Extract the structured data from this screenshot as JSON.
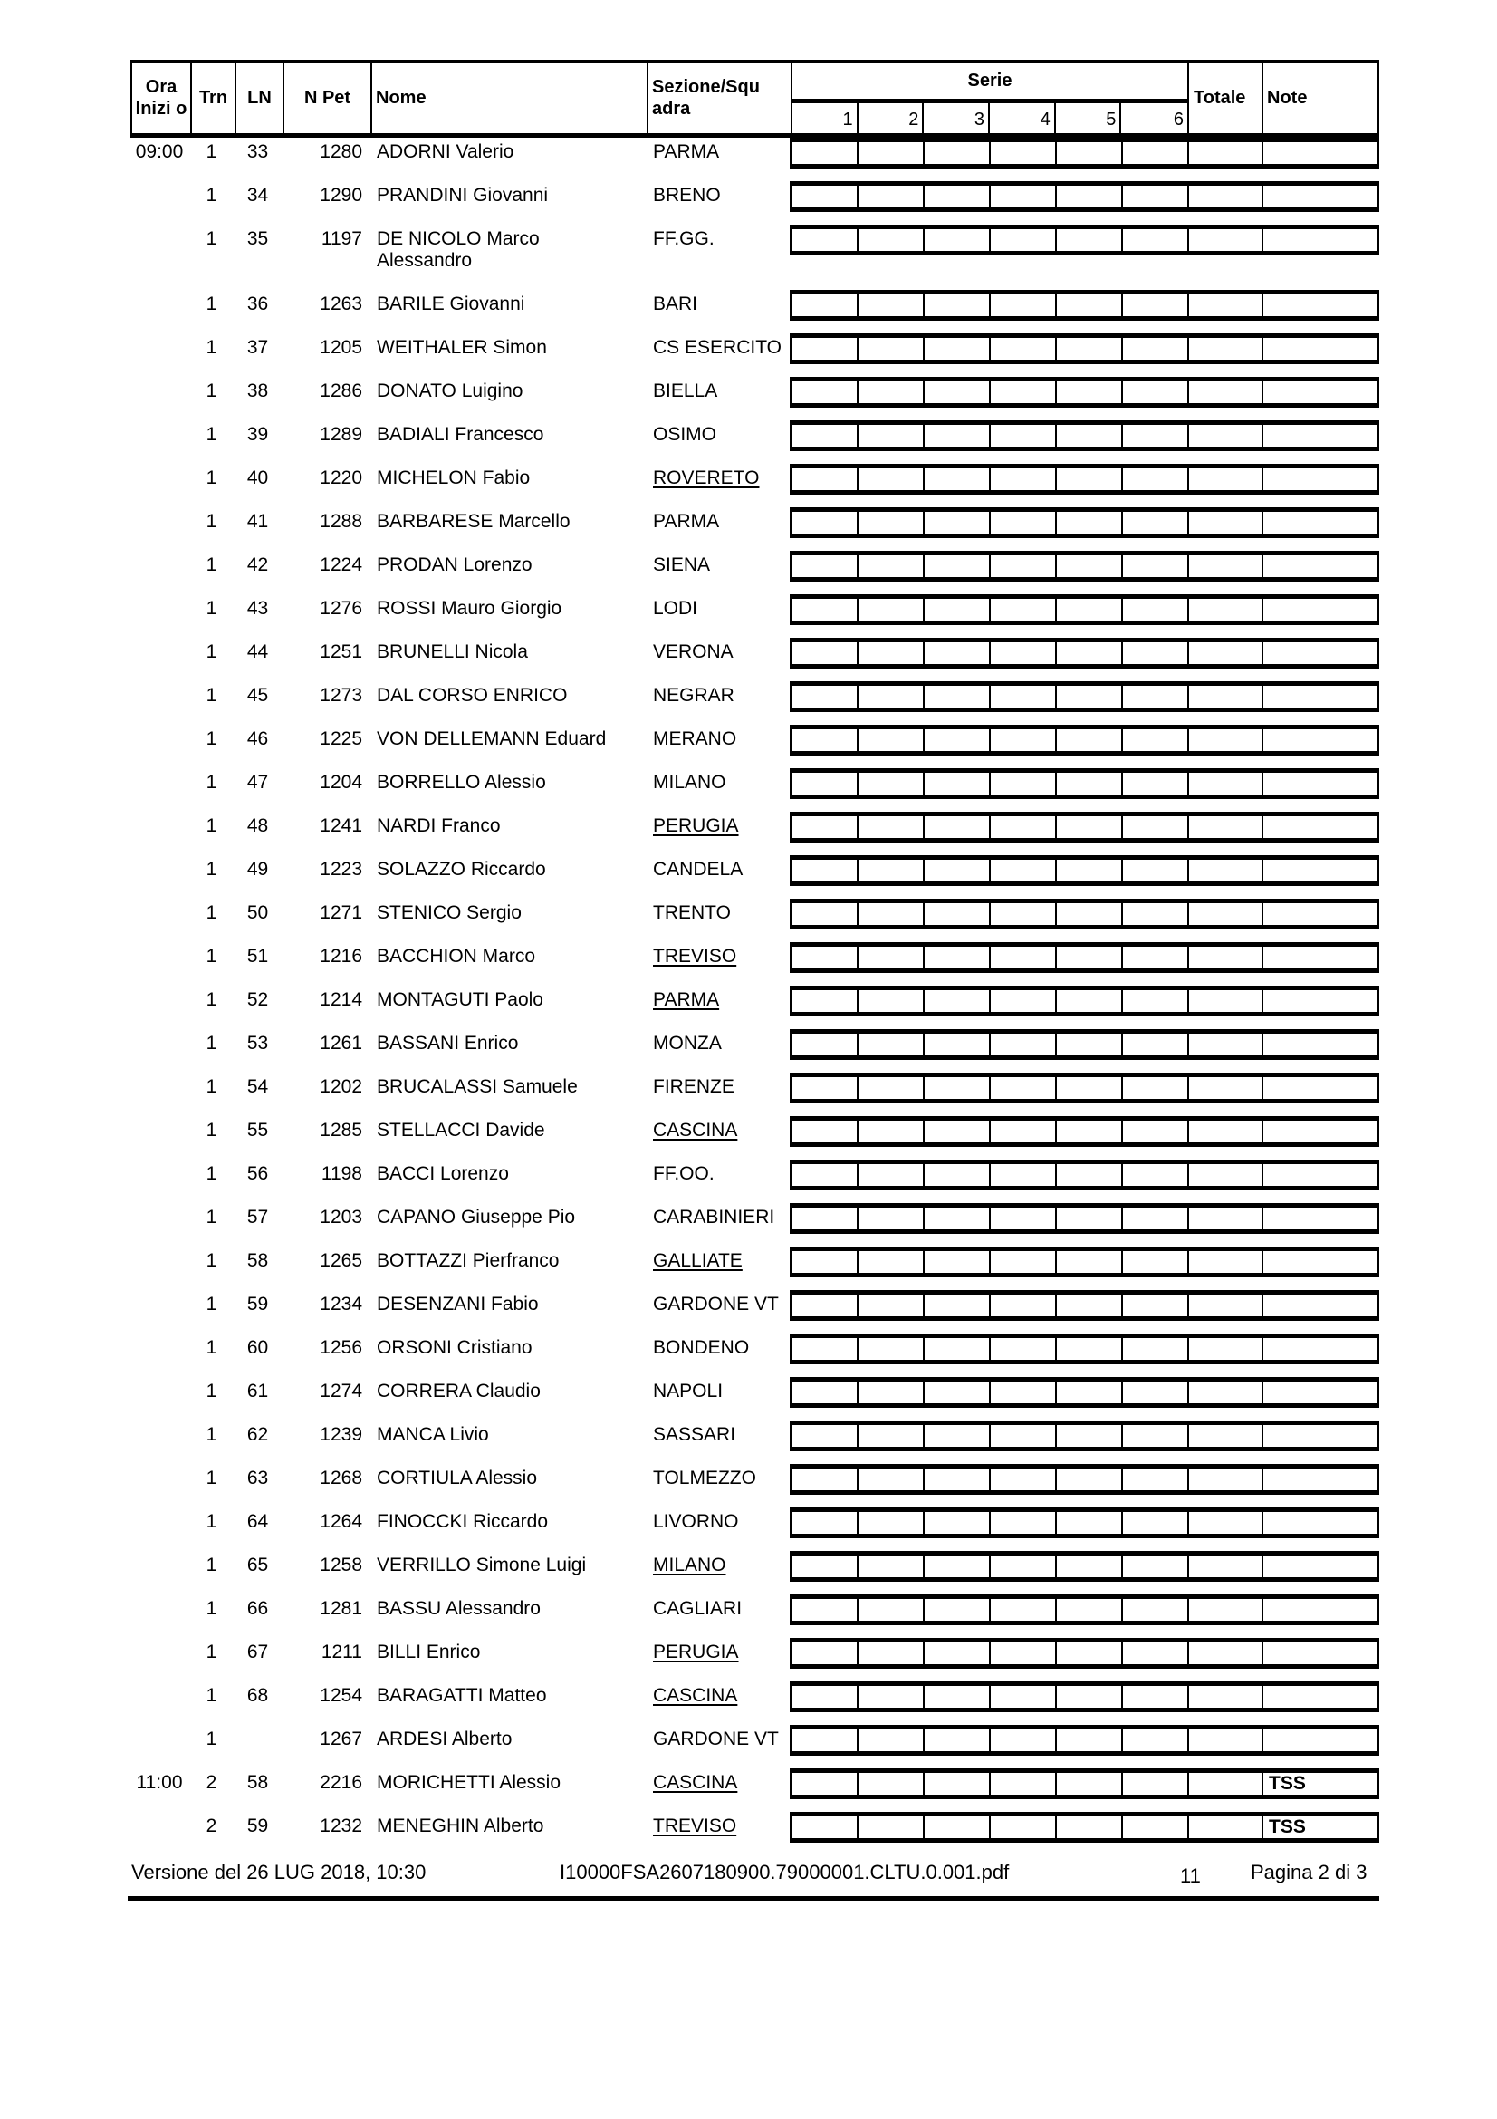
{
  "header": {
    "ora": "Ora Inizi o",
    "trn": "Trn",
    "ln": "LN",
    "npet": "N Pet",
    "nome": "Nome",
    "sezione": "Sezione/Squ adra",
    "serie": "Serie",
    "serie_nums": [
      "1",
      "2",
      "3",
      "4",
      "5",
      "6"
    ],
    "totale": "Totale",
    "note": "Note"
  },
  "rows": [
    {
      "ora": "09:00",
      "trn": "1",
      "ln": "33",
      "npet": "1280",
      "nome": "ADORNI Valerio",
      "sez": "PARMA",
      "u": false,
      "note": ""
    },
    {
      "ora": "",
      "trn": "1",
      "ln": "34",
      "npet": "1290",
      "nome": "PRANDINI Giovanni",
      "sez": "BRENO",
      "u": false,
      "note": ""
    },
    {
      "ora": "",
      "trn": "1",
      "ln": "35",
      "npet": "1197",
      "nome": "DE NICOLO Marco Alessandro",
      "sez": "FF.GG.",
      "u": false,
      "note": ""
    },
    {
      "ora": "",
      "trn": "1",
      "ln": "36",
      "npet": "1263",
      "nome": "BARILE Giovanni",
      "sez": "BARI",
      "u": false,
      "note": ""
    },
    {
      "ora": "",
      "trn": "1",
      "ln": "37",
      "npet": "1205",
      "nome": "WEITHALER Simon",
      "sez": "CS ESERCITO",
      "u": false,
      "note": ""
    },
    {
      "ora": "",
      "trn": "1",
      "ln": "38",
      "npet": "1286",
      "nome": "DONATO Luigino",
      "sez": "BIELLA",
      "u": false,
      "note": ""
    },
    {
      "ora": "",
      "trn": "1",
      "ln": "39",
      "npet": "1289",
      "nome": "BADIALI Francesco",
      "sez": "OSIMO",
      "u": false,
      "note": ""
    },
    {
      "ora": "",
      "trn": "1",
      "ln": "40",
      "npet": "1220",
      "nome": "MICHELON Fabio",
      "sez": "ROVERETO",
      "u": true,
      "note": ""
    },
    {
      "ora": "",
      "trn": "1",
      "ln": "41",
      "npet": "1288",
      "nome": "BARBARESE Marcello",
      "sez": "PARMA",
      "u": false,
      "note": ""
    },
    {
      "ora": "",
      "trn": "1",
      "ln": "42",
      "npet": "1224",
      "nome": "PRODAN Lorenzo",
      "sez": "SIENA",
      "u": false,
      "note": ""
    },
    {
      "ora": "",
      "trn": "1",
      "ln": "43",
      "npet": "1276",
      "nome": "ROSSI Mauro Giorgio",
      "sez": "LODI",
      "u": false,
      "note": ""
    },
    {
      "ora": "",
      "trn": "1",
      "ln": "44",
      "npet": "1251",
      "nome": "BRUNELLI Nicola",
      "sez": "VERONA",
      "u": false,
      "note": ""
    },
    {
      "ora": "",
      "trn": "1",
      "ln": "45",
      "npet": "1273",
      "nome": "DAL CORSO ENRICO",
      "sez": "NEGRAR",
      "u": false,
      "note": ""
    },
    {
      "ora": "",
      "trn": "1",
      "ln": "46",
      "npet": "1225",
      "nome": "VON DELLEMANN Eduard",
      "sez": "MERANO",
      "u": false,
      "note": ""
    },
    {
      "ora": "",
      "trn": "1",
      "ln": "47",
      "npet": "1204",
      "nome": "BORRELLO Alessio",
      "sez": "MILANO",
      "u": false,
      "note": ""
    },
    {
      "ora": "",
      "trn": "1",
      "ln": "48",
      "npet": "1241",
      "nome": "NARDI Franco",
      "sez": "PERUGIA",
      "u": true,
      "note": ""
    },
    {
      "ora": "",
      "trn": "1",
      "ln": "49",
      "npet": "1223",
      "nome": "SOLAZZO Riccardo",
      "sez": "CANDELA",
      "u": false,
      "note": ""
    },
    {
      "ora": "",
      "trn": "1",
      "ln": "50",
      "npet": "1271",
      "nome": "STENICO Sergio",
      "sez": "TRENTO",
      "u": false,
      "note": ""
    },
    {
      "ora": "",
      "trn": "1",
      "ln": "51",
      "npet": "1216",
      "nome": "BACCHION Marco",
      "sez": "TREVISO",
      "u": true,
      "note": ""
    },
    {
      "ora": "",
      "trn": "1",
      "ln": "52",
      "npet": "1214",
      "nome": "MONTAGUTI Paolo",
      "sez": "PARMA",
      "u": true,
      "note": ""
    },
    {
      "ora": "",
      "trn": "1",
      "ln": "53",
      "npet": "1261",
      "nome": "BASSANI Enrico",
      "sez": "MONZA",
      "u": false,
      "note": ""
    },
    {
      "ora": "",
      "trn": "1",
      "ln": "54",
      "npet": "1202",
      "nome": "BRUCALASSI Samuele",
      "sez": "FIRENZE",
      "u": false,
      "note": ""
    },
    {
      "ora": "",
      "trn": "1",
      "ln": "55",
      "npet": "1285",
      "nome": "STELLACCI Davide",
      "sez": "CASCINA",
      "u": true,
      "note": ""
    },
    {
      "ora": "",
      "trn": "1",
      "ln": "56",
      "npet": "1198",
      "nome": "BACCI Lorenzo",
      "sez": "FF.OO.",
      "u": false,
      "note": ""
    },
    {
      "ora": "",
      "trn": "1",
      "ln": "57",
      "npet": "1203",
      "nome": "CAPANO Giuseppe Pio",
      "sez": "CARABINIERI",
      "u": false,
      "note": ""
    },
    {
      "ora": "",
      "trn": "1",
      "ln": "58",
      "npet": "1265",
      "nome": "BOTTAZZI Pierfranco",
      "sez": "GALLIATE",
      "u": true,
      "note": ""
    },
    {
      "ora": "",
      "trn": "1",
      "ln": "59",
      "npet": "1234",
      "nome": "DESENZANI Fabio",
      "sez": "GARDONE VT",
      "u": false,
      "note": ""
    },
    {
      "ora": "",
      "trn": "1",
      "ln": "60",
      "npet": "1256",
      "nome": "ORSONI Cristiano",
      "sez": "BONDENO",
      "u": false,
      "note": ""
    },
    {
      "ora": "",
      "trn": "1",
      "ln": "61",
      "npet": "1274",
      "nome": "CORRERA Claudio",
      "sez": "NAPOLI",
      "u": false,
      "note": ""
    },
    {
      "ora": "",
      "trn": "1",
      "ln": "62",
      "npet": "1239",
      "nome": "MANCA Livio",
      "sez": "SASSARI",
      "u": false,
      "note": ""
    },
    {
      "ora": "",
      "trn": "1",
      "ln": "63",
      "npet": "1268",
      "nome": "CORTIULA Alessio",
      "sez": "TOLMEZZO",
      "u": false,
      "note": ""
    },
    {
      "ora": "",
      "trn": "1",
      "ln": "64",
      "npet": "1264",
      "nome": "FINOCCKI Riccardo",
      "sez": "LIVORNO",
      "u": false,
      "note": ""
    },
    {
      "ora": "",
      "trn": "1",
      "ln": "65",
      "npet": "1258",
      "nome": "VERRILLO Simone Luigi",
      "sez": "MILANO",
      "u": true,
      "note": ""
    },
    {
      "ora": "",
      "trn": "1",
      "ln": "66",
      "npet": "1281",
      "nome": "BASSU Alessandro",
      "sez": "CAGLIARI",
      "u": false,
      "note": ""
    },
    {
      "ora": "",
      "trn": "1",
      "ln": "67",
      "npet": "1211",
      "nome": "BILLI Enrico",
      "sez": "PERUGIA",
      "u": true,
      "note": ""
    },
    {
      "ora": "",
      "trn": "1",
      "ln": "68",
      "npet": "1254",
      "nome": "BARAGATTI Matteo",
      "sez": "CASCINA",
      "u": true,
      "note": ""
    },
    {
      "ora": "",
      "trn": "1",
      "ln": "",
      "npet": "1267",
      "nome": "ARDESI Alberto",
      "sez": "GARDONE VT",
      "u": false,
      "note": ""
    },
    {
      "ora": "11:00",
      "trn": "2",
      "ln": "58",
      "npet": "2216",
      "nome": "MORICHETTI Alessio",
      "sez": "CASCINA",
      "u": true,
      "note": "TSS"
    },
    {
      "ora": "",
      "trn": "2",
      "ln": "59",
      "npet": "1232",
      "nome": "MENEGHIN Alberto",
      "sez": "TREVISO",
      "u": true,
      "note": "TSS"
    }
  ],
  "footer": {
    "version": "Versione del 26 LUG 2018, 10:30",
    "file": "I10000FSA2607180900.79000001.CLTU.0.001.pdf",
    "code": "11",
    "page": "Pagina 2 di 3"
  }
}
